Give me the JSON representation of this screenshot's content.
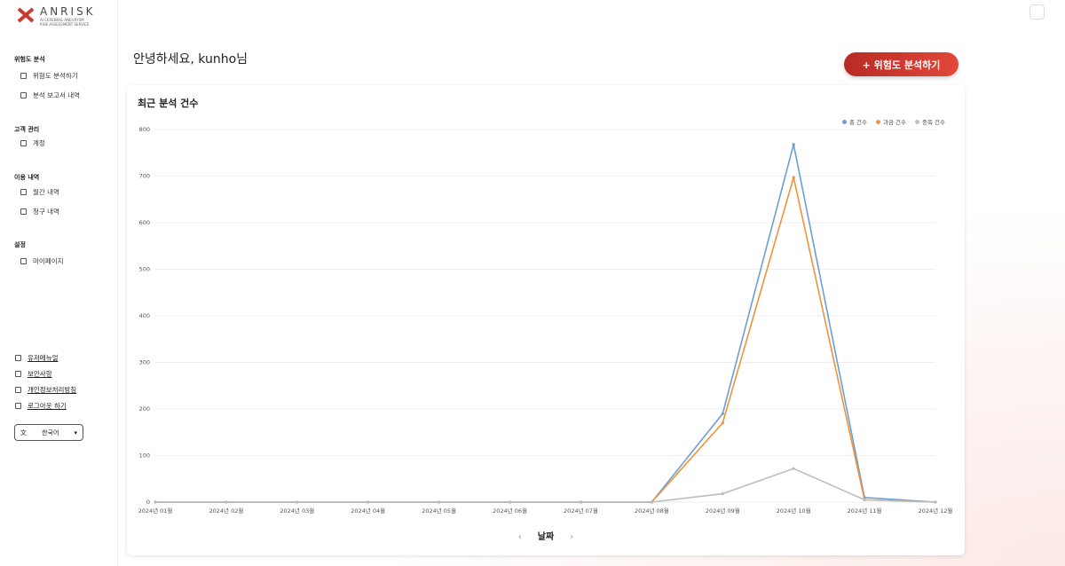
{
  "sidebar": {
    "logo": {
      "name": "ANRISK",
      "tagline": [
        "AI CEREBRAL ANEURYSM",
        "RISK ASSESSMENT SERVICE"
      ]
    },
    "sections": [
      {
        "title": "위험도 분석",
        "items": [
          "위험도 분석하기",
          "분석 보고서 내역"
        ]
      },
      {
        "title": "고객 관리",
        "items": [
          "계정"
        ]
      },
      {
        "title": "이용 내역",
        "items": [
          "월간 내역",
          "청구 내역"
        ]
      },
      {
        "title": "설정",
        "items": [
          "마이페이지"
        ]
      }
    ],
    "links": [
      "유저메뉴얼",
      "보안사항",
      "개인정보처리방침",
      "로그아웃 하기"
    ],
    "language": "한국어"
  },
  "header": {
    "greeting": "안녕하세요, kunho님",
    "button": "+ 위험도 분석하기"
  },
  "chart_data": {
    "type": "line",
    "title": "최근 분석 건수",
    "x_label": "날짜",
    "categories": [
      "2024년 01월",
      "2024년 02월",
      "2024년 03월",
      "2024년 04월",
      "2024년 05월",
      "2024년 06월",
      "2024년 07월",
      "2024년 08월",
      "2024년 09월",
      "2024년 10월",
      "2024년 11월",
      "2024년 12월"
    ],
    "series": [
      {
        "name": "총 건수",
        "color": "#6a9fd4",
        "values": [
          0,
          0,
          0,
          0,
          0,
          0,
          0,
          0,
          190,
          768,
          10,
          0
        ]
      },
      {
        "name": "과금 건수",
        "color": "#f0923a",
        "values": [
          0,
          0,
          0,
          0,
          0,
          0,
          0,
          0,
          170,
          697,
          5,
          0
        ]
      },
      {
        "name": "중복 건수",
        "color": "#bdbdbd",
        "values": [
          0,
          0,
          0,
          0,
          0,
          0,
          0,
          0,
          18,
          72,
          5,
          0
        ]
      }
    ],
    "ylim": [
      0,
      800
    ],
    "yticks": [
      0,
      100,
      200,
      300,
      400,
      500,
      600,
      700,
      800
    ],
    "grid": true,
    "legend": "top-right"
  }
}
